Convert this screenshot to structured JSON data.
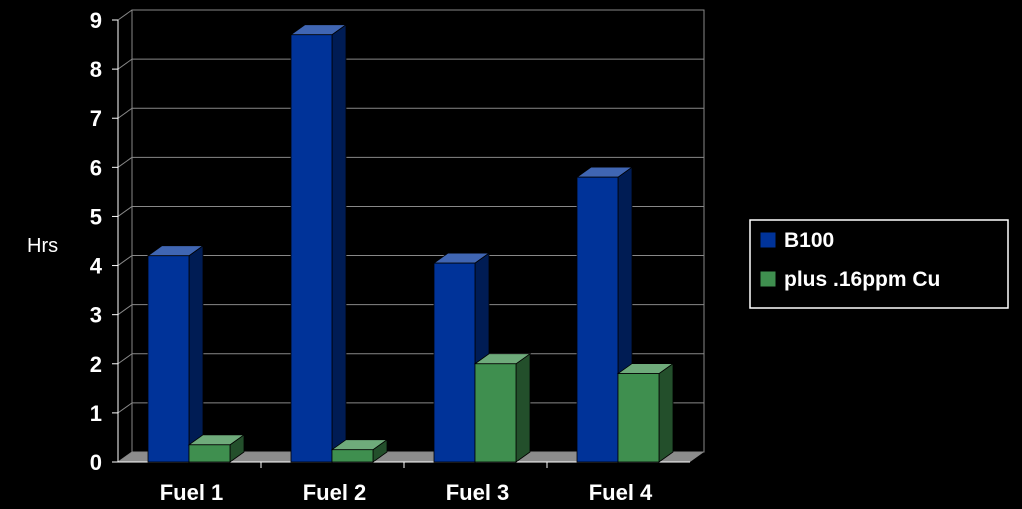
{
  "chart_data": {
    "type": "bar",
    "categories": [
      "Fuel 1",
      "Fuel 2",
      "Fuel 3",
      "Fuel 4"
    ],
    "series": [
      {
        "name": "B100",
        "values": [
          4.2,
          8.7,
          4.05,
          5.8
        ],
        "color": "#003399"
      },
      {
        "name": "plus .16ppm Cu",
        "values": [
          0.35,
          0.25,
          2.0,
          1.8
        ],
        "color": "#3f8f4f"
      }
    ],
    "title": "",
    "xlabel": "",
    "ylabel": "Hrs",
    "ylim": [
      0,
      9
    ],
    "yticks": [
      0,
      1,
      2,
      3,
      4,
      5,
      6,
      7,
      8,
      9
    ],
    "grid": true,
    "legend_position": "right",
    "background": "#000000",
    "style": "3d-clustered-column"
  }
}
